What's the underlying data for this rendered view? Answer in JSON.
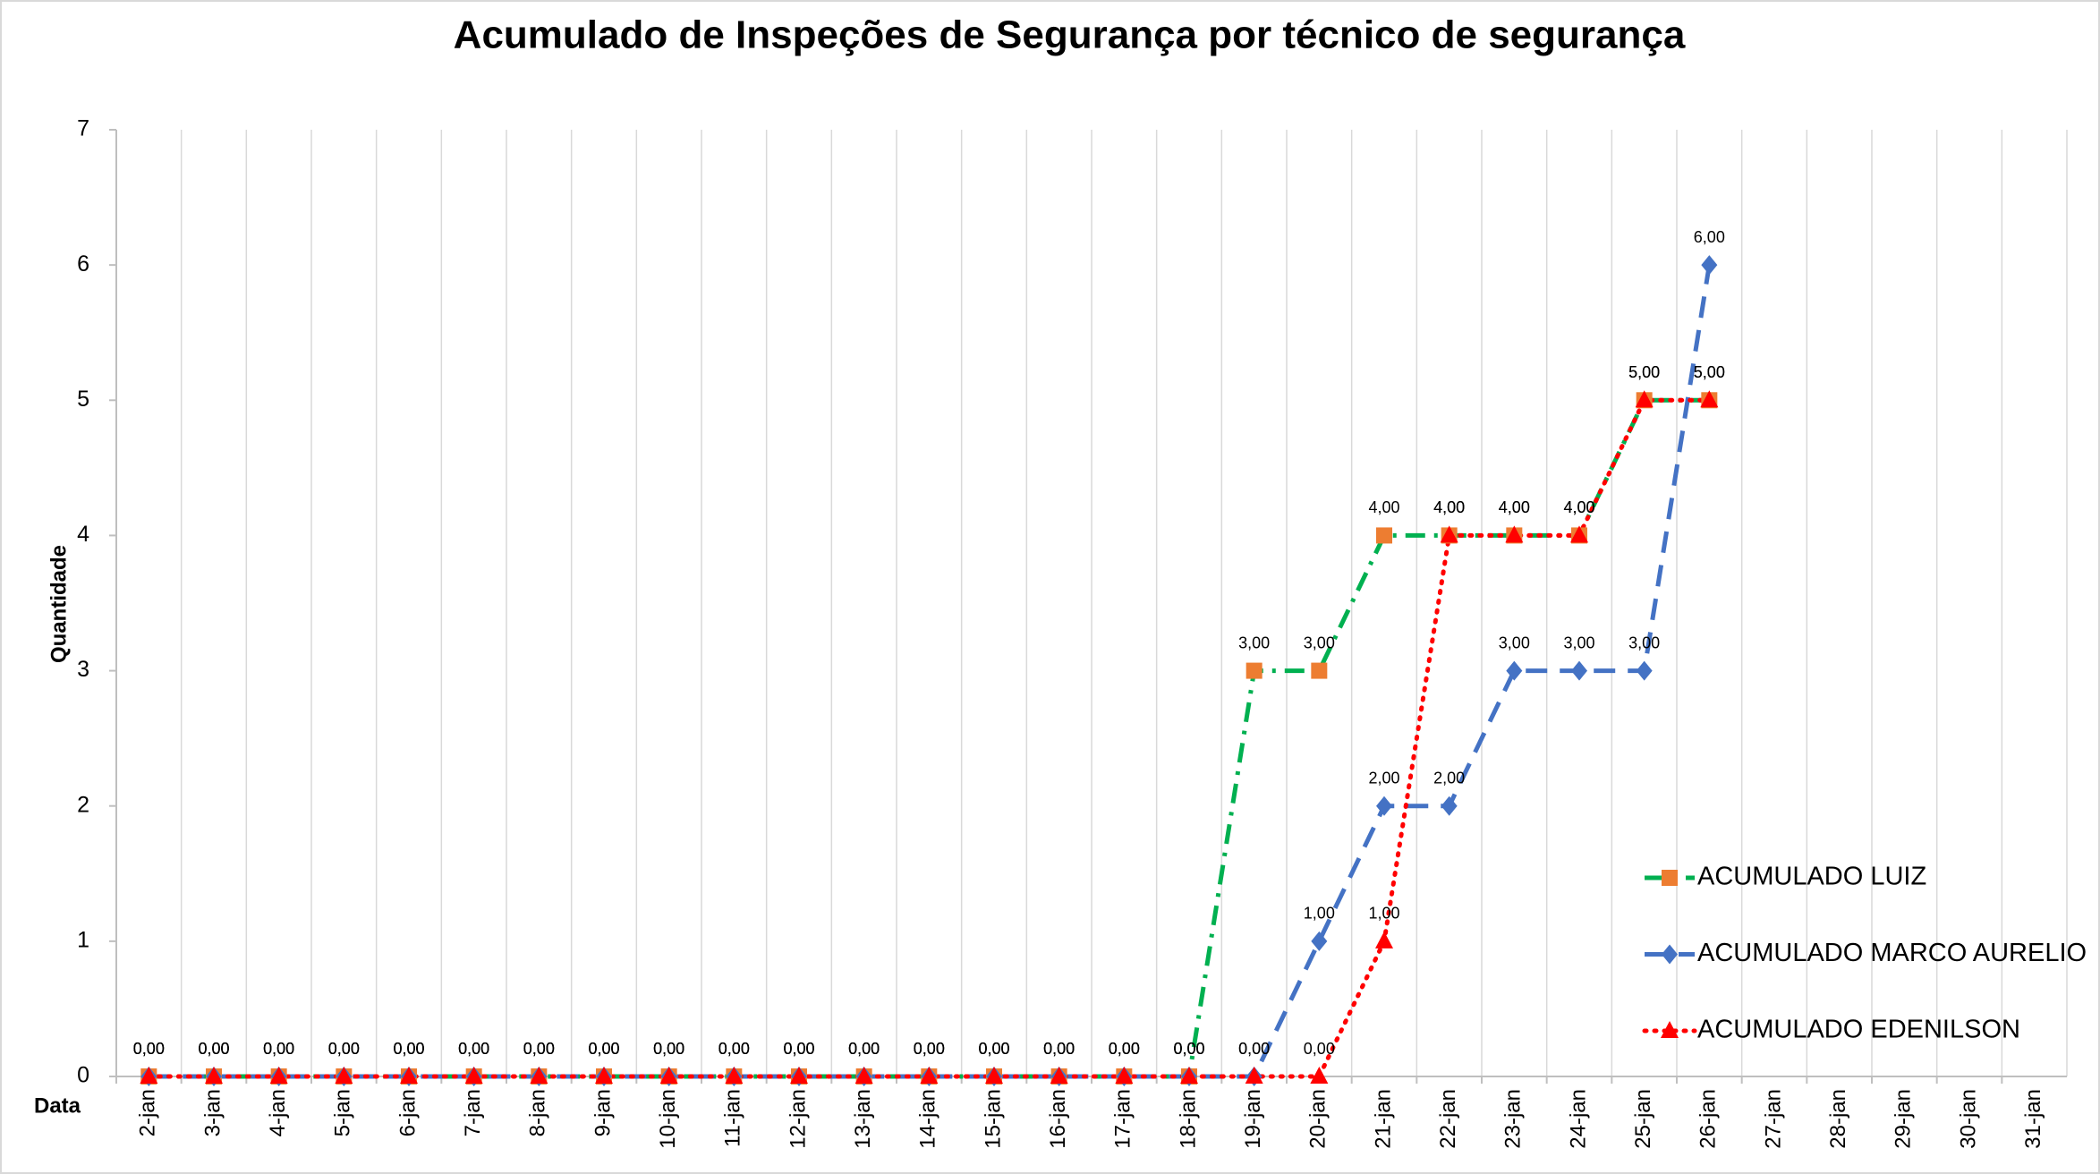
{
  "chart_data": {
    "type": "line",
    "title": "Acumulado de Inspeções de Segurança por técnico de segurança",
    "x_label": "Data",
    "y_label": "Quantidade",
    "categories": [
      "2-jan",
      "3-jan",
      "4-jan",
      "5-jan",
      "6-jan",
      "7-jan",
      "8-jan",
      "9-jan",
      "10-jan",
      "11-jan",
      "12-jan",
      "13-jan",
      "14-jan",
      "15-jan",
      "16-jan",
      "17-jan",
      "18-jan",
      "19-jan",
      "20-jan",
      "21-jan",
      "22-jan",
      "23-jan",
      "24-jan",
      "25-jan",
      "26-jan",
      "27-jan",
      "28-jan",
      "29-jan",
      "30-jan",
      "31-jan"
    ],
    "ylim": [
      0,
      7
    ],
    "yticks": [
      0,
      1,
      2,
      3,
      4,
      5,
      6,
      7
    ],
    "grid": true,
    "legend": "right",
    "series": [
      {
        "name": "ACUMULADO LUIZ",
        "color": "#00b050",
        "marker_color": "#ed7d31",
        "marker": "square",
        "dash": "dashdot",
        "values": [
          0,
          0,
          0,
          0,
          0,
          0,
          0,
          0,
          0,
          0,
          0,
          0,
          0,
          0,
          0,
          0,
          0,
          3,
          3,
          4,
          4,
          4,
          4,
          5,
          5,
          null,
          null,
          null,
          null,
          null
        ],
        "value_labels": [
          "0,00",
          "0,00",
          "0,00",
          "0,00",
          "0,00",
          "0,00",
          "0,00",
          "0,00",
          "0,00",
          "0,00",
          "0,00",
          "0,00",
          "0,00",
          "0,00",
          "0,00",
          "0,00",
          "0,00",
          "3,00",
          "3,00",
          "4,00",
          "4,00",
          "4,00",
          "4,00",
          "5,00",
          "5,00",
          null,
          null,
          null,
          null,
          null
        ]
      },
      {
        "name": "ACUMULADO MARCO AURELIO",
        "color": "#4472c4",
        "marker_color": "#4472c4",
        "marker": "diamond",
        "dash": "dash",
        "values": [
          0,
          0,
          0,
          0,
          0,
          0,
          0,
          0,
          0,
          0,
          0,
          0,
          0,
          0,
          0,
          0,
          0,
          0,
          1,
          2,
          2,
          3,
          3,
          3,
          6,
          null,
          null,
          null,
          null,
          null
        ],
        "value_labels": [
          "0,00",
          "0,00",
          "0,00",
          "0,00",
          "0,00",
          "0,00",
          "0,00",
          "0,00",
          "0,00",
          "0,00",
          "0,00",
          "0,00",
          "0,00",
          "0,00",
          "0,00",
          "0,00",
          "0,00",
          "0,00",
          "1,00",
          "2,00",
          "2,00",
          "3,00",
          "3,00",
          "3,00",
          "6,00",
          null,
          null,
          null,
          null,
          null
        ]
      },
      {
        "name": "ACUMULADO EDENILSON",
        "color": "#ff0000",
        "marker_color": "#ff0000",
        "marker": "triangle",
        "dash": "dot",
        "values": [
          0,
          0,
          0,
          0,
          0,
          0,
          0,
          0,
          0,
          0,
          0,
          0,
          0,
          0,
          0,
          0,
          0,
          0,
          0,
          1,
          4,
          4,
          4,
          5,
          5,
          null,
          null,
          null,
          null,
          null
        ],
        "value_labels": [
          "0,00",
          "0,00",
          "0,00",
          "0,00",
          "0,00",
          "0,00",
          "0,00",
          "0,00",
          "0,00",
          "0,00",
          "0,00",
          "0,00",
          "0,00",
          "0,00",
          "0,00",
          "0,00",
          "0,00",
          "0,00",
          "0,00",
          "1,00",
          "4,00",
          "4,00",
          "4,00",
          "5,00",
          "5,00",
          null,
          null,
          null,
          null,
          null
        ]
      }
    ]
  }
}
